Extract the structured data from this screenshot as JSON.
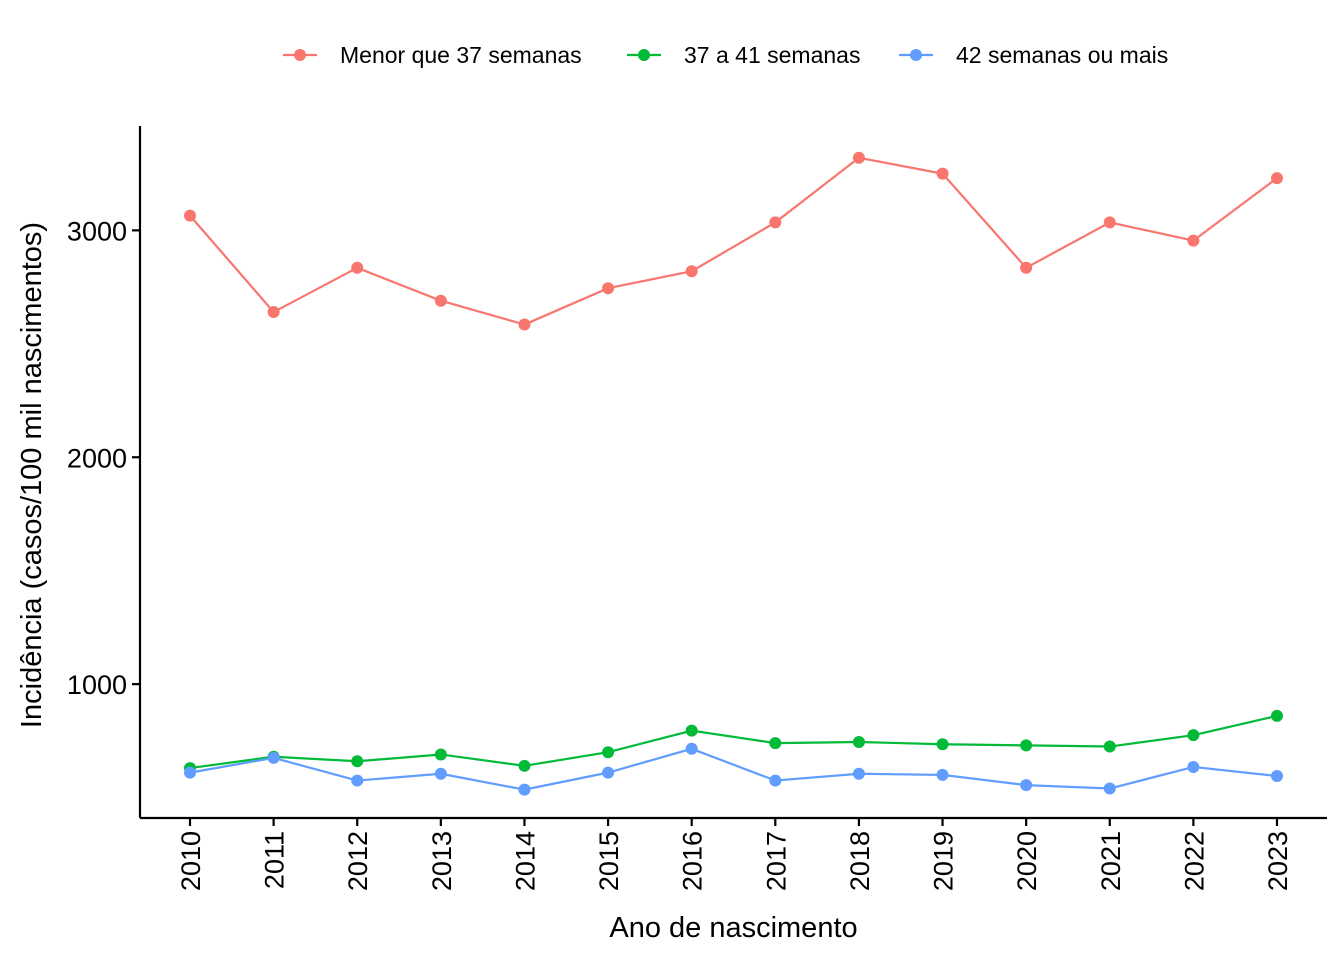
{
  "chart_data": {
    "type": "line",
    "title": "",
    "xlabel": "Ano de nascimento",
    "ylabel": "Incidência (casos/100 mil nascimentos)",
    "x": [
      "2010",
      "2011",
      "2012",
      "2013",
      "2014",
      "2015",
      "2016",
      "2017",
      "2018",
      "2019",
      "2020",
      "2021",
      "2022",
      "2023"
    ],
    "yticks": [
      1000,
      2000,
      3000
    ],
    "ylim": [
      410,
      3460
    ],
    "grid": false,
    "legend_position": "top",
    "series": [
      {
        "name": "Menor que 37 semanas",
        "color": "#F8766D",
        "values": [
          3065,
          2640,
          2835,
          2690,
          2585,
          2745,
          2820,
          3035,
          3320,
          3250,
          2835,
          3035,
          2955,
          3230
        ]
      },
      {
        "name": "37 a 41 semanas",
        "color": "#00BA38",
        "values": [
          630,
          680,
          660,
          690,
          640,
          700,
          795,
          740,
          745,
          735,
          730,
          725,
          775,
          860
        ]
      },
      {
        "name": "42 semanas ou mais",
        "color": "#619CFF",
        "values": [
          610,
          675,
          575,
          605,
          535,
          610,
          715,
          575,
          605,
          600,
          555,
          540,
          635,
          595
        ]
      }
    ]
  }
}
